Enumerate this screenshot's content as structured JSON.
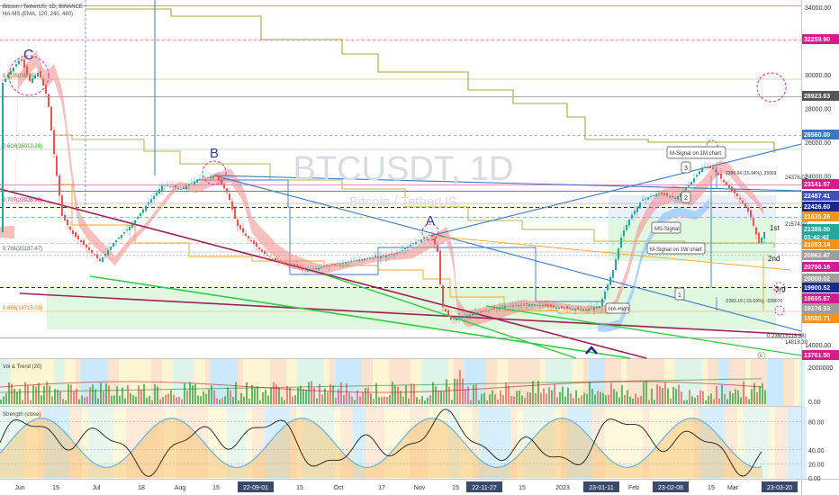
{
  "header": {
    "symbol_line": "Bitcoin / TetherUS, 1D, BINANCE",
    "indicator_line": "HA-MS (EMA, 120, 240, 480)"
  },
  "watermark": {
    "ticker": "BTCUSDT, 1D",
    "name": "Bitcoin / TetherUS"
  },
  "colors": {
    "pane_bg": "#ffffff",
    "up_candle": "#26a69a",
    "down_candle": "#ef5350",
    "ema_band": "#f28b8b",
    "uptrend_band": "#93c5fd",
    "step_line": "#a3a83c",
    "blue_line": "#3b78c4",
    "maroon_line": "#a0205a",
    "green_line": "#2ecc40",
    "support_box": "#d6f5d6",
    "fib_blue_dash": "#1a2a8a",
    "magenta_circle": "#e0309a",
    "axis_text": "#333333"
  },
  "chart_data": [
    {
      "type": "candlestick",
      "ylim": [
        13000,
        35000
      ],
      "y_axis_labels": [
        "34000.00",
        "32000.00",
        "30000.00",
        "28000.00",
        "26000.00",
        "24000.00",
        "22000.00",
        "20000.00",
        "18000.00",
        "16000.00",
        "14000.00"
      ],
      "x_tick_labels": [
        "Jun",
        "15",
        "Jul",
        "18",
        "Aug",
        "15",
        "22-09-01",
        "15",
        "Oct",
        "17",
        "Nov",
        "15",
        "22-11-27",
        "15",
        "2023",
        "23-01-11",
        "Feb",
        "23-02-08",
        "15",
        "Mar",
        "23-03-20"
      ],
      "highlighted_x_ticks": [
        "22-09-01",
        "22-11-27",
        "23-01-11",
        "23-02-08",
        "23-03-20"
      ],
      "price_markers": [
        {
          "label": "32259.90",
          "color": "#d81b8c"
        },
        {
          "label": "28923.63",
          "color": "#555555"
        },
        {
          "label": "26560.00",
          "color": "#3b78c4"
        },
        {
          "label": "23141.57",
          "color": "#d81b8c"
        },
        {
          "label": "22487.41",
          "color": "#3f51b5"
        },
        {
          "label": "22426.60",
          "color": "#1a2a8a"
        },
        {
          "label": "21635.26",
          "color": "#f7931a"
        },
        {
          "label": "21388.00",
          "color": "#26a69a"
        },
        {
          "label": "01:42:42",
          "color": "#26a69a"
        },
        {
          "label": "21053.14",
          "color": "#f7931a"
        },
        {
          "label": "20862.47",
          "color": "#9e9e9e"
        },
        {
          "label": "20798.16",
          "color": "#d81b8c"
        },
        {
          "label": "20000.02",
          "color": "#9e9e9e"
        },
        {
          "label": "19900.52",
          "color": "#1a2a8a"
        },
        {
          "label": "19695.87",
          "color": "#d81b8c"
        },
        {
          "label": "19176.93",
          "color": "#9e9e9e"
        },
        {
          "label": "18580.71",
          "color": "#f7931a"
        },
        {
          "label": "13761.50",
          "color": "#d81b8c"
        }
      ],
      "fib_labels": [
        {
          "text": "0.5(35035.25)"
        },
        {
          "text": "0.618(26013.28)"
        },
        {
          "text": "0.707(22926.96)"
        },
        {
          "text": "0.786(20187.47)"
        },
        {
          "text": "0.886(16715.03)"
        },
        {
          "text": "0.236(15113.38)"
        }
      ],
      "wave_labels": [
        "C",
        "B",
        "A"
      ],
      "annotations": [
        "M-Signal on 1M chart",
        "M-Signal on 1W chart",
        "MS-Signal",
        "HA-High",
        "1st",
        "2nd",
        "3rd",
        "24376.02",
        "21574.97",
        "14818.30",
        "2396.94 (15.94%), 33959",
        "-2283.16 (-15.69%), -228070",
        "0",
        "1",
        "2",
        "3"
      ]
    },
    {
      "type": "bar",
      "title": "Vol & Trend (20)",
      "y_axis_labels": [
        "2000000",
        "0.00"
      ]
    },
    {
      "type": "area",
      "title": "Strength (close)",
      "y_axis_labels": [
        "80.00",
        "40.00",
        "20.00",
        "0.00"
      ],
      "ylim": [
        0,
        100
      ]
    }
  ]
}
